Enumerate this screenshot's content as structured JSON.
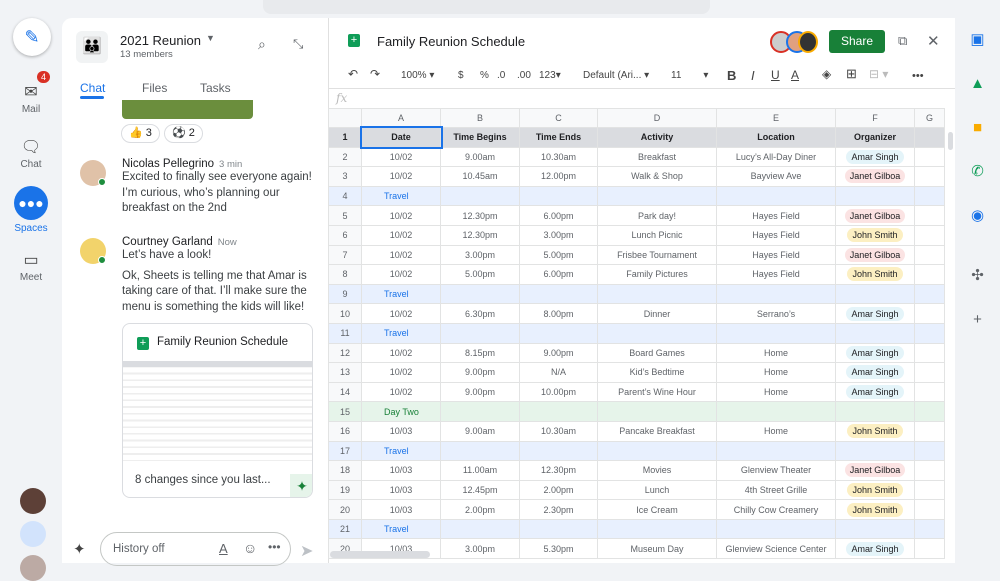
{
  "rail": {
    "mail": "Mail",
    "mail_badge": "4",
    "chat": "Chat",
    "spaces": "Spaces",
    "meet": "Meet"
  },
  "space": {
    "title": "2021 Reunion",
    "members": "13 members",
    "tabs": [
      "Chat",
      "Files",
      "Tasks"
    ]
  },
  "reactions": [
    {
      "emoji": "👍",
      "count": "3"
    },
    {
      "emoji": "⚽",
      "count": "2"
    }
  ],
  "messages": [
    {
      "name": "Nicolas Pellegrino",
      "time": "3 min",
      "text": "Excited to finally see everyone again! I’m curious, who’s planning our breakfast on the 2nd"
    },
    {
      "name": "Courtney Garland",
      "time": "Now",
      "text": "Let’s have a look!",
      "text2": "Ok, Sheets is telling me that Amar is taking care of that. I’ll make sure the menu is something the kids will like!"
    }
  ],
  "card": {
    "title": "Family Reunion Schedule",
    "summary": "8 changes since you last..."
  },
  "compose": {
    "placeholder": "History off"
  },
  "sheet": {
    "title": "Family Reunion Schedule",
    "share": "Share",
    "toolbar": {
      "zoom": "100%",
      "currency": "$",
      "percent": "%",
      "dec_less": ".0",
      "dec_more": ".00",
      "format": "123",
      "font": "Default (Ari...",
      "size": "11",
      "bold": "B",
      "italic": "I",
      "underline": "U",
      "color": "A"
    },
    "fx": "fx",
    "columns": [
      "A",
      "B",
      "C",
      "D",
      "E",
      "F",
      "G"
    ],
    "headers": [
      "Date",
      "Time Begins",
      "Time Ends",
      "Activity",
      "Location",
      "Organizer"
    ],
    "rows": [
      {
        "n": "2",
        "cells": [
          "10/02",
          "9.00am",
          "10.30am",
          "Breakfast",
          "Lucy’s All-Day Diner",
          "Amar Singh"
        ]
      },
      {
        "n": "3",
        "cells": [
          "10/02",
          "10.45am",
          "12.00pm",
          "Walk & Shop",
          "Bayview Ave",
          "Janet Gilboa"
        ]
      },
      {
        "n": "4",
        "label": "Travel",
        "kind": "travel"
      },
      {
        "n": "5",
        "cells": [
          "10/02",
          "12.30pm",
          "6.00pm",
          "Park day!",
          "Hayes Field",
          "Janet Gilboa"
        ]
      },
      {
        "n": "6",
        "cells": [
          "10/02",
          "12.30pm",
          "3.00pm",
          "Lunch Picnic",
          "Hayes Field",
          "John Smith"
        ]
      },
      {
        "n": "7",
        "cells": [
          "10/02",
          "3.00pm",
          "5.00pm",
          "Frisbee Tournament",
          "Hayes Field",
          "Janet Gilboa"
        ]
      },
      {
        "n": "8",
        "cells": [
          "10/02",
          "5.00pm",
          "6.00pm",
          "Family Pictures",
          "Hayes Field",
          "John Smith"
        ]
      },
      {
        "n": "9",
        "label": "Travel",
        "kind": "travel"
      },
      {
        "n": "10",
        "cells": [
          "10/02",
          "6.30pm",
          "8.00pm",
          "Dinner",
          "Serrano’s",
          "Amar Singh"
        ]
      },
      {
        "n": "11",
        "label": "Travel",
        "kind": "travel"
      },
      {
        "n": "12",
        "cells": [
          "10/02",
          "8.15pm",
          "9.00pm",
          "Board Games",
          "Home",
          "Amar Singh"
        ]
      },
      {
        "n": "13",
        "cells": [
          "10/02",
          "9.00pm",
          "N/A",
          "Kid’s Bedtime",
          "Home",
          "Amar Singh"
        ]
      },
      {
        "n": "14",
        "cells": [
          "10/02",
          "9.00pm",
          "10.00pm",
          "Parent’s Wine Hour",
          "Home",
          "Amar Singh"
        ]
      },
      {
        "n": "15",
        "label": "Day Two",
        "kind": "green"
      },
      {
        "n": "16",
        "cells": [
          "10/03",
          "9.00am",
          "10.30am",
          "Pancake Breakfast",
          "Home",
          "John Smith"
        ]
      },
      {
        "n": "17",
        "label": "Travel",
        "kind": "travel"
      },
      {
        "n": "18",
        "cells": [
          "10/03",
          "11.00am",
          "12.30pm",
          "Movies",
          "Glenview Theater",
          "Janet Gilboa"
        ]
      },
      {
        "n": "19",
        "cells": [
          "10/03",
          "12.45pm",
          "2.00pm",
          "Lunch",
          "4th Street Grille",
          "John Smith"
        ]
      },
      {
        "n": "20",
        "cells": [
          "10/03",
          "2.00pm",
          "2.30pm",
          "Ice Cream",
          "Chilly Cow Creamery",
          "John Smith"
        ]
      },
      {
        "n": "21",
        "label": "Travel",
        "kind": "travel"
      },
      {
        "n": "20",
        "cells": [
          "10/03",
          "3.00pm",
          "5.30pm",
          "Museum Day",
          "Glenview Science Center",
          "Amar Singh"
        ]
      }
    ]
  },
  "organizer_colors": {
    "Amar Singh": "#e4f4f9",
    "Janet Gilboa": "#fbe3e3",
    "John Smith": "#fcefc2"
  },
  "accent": "#1a73e8",
  "share_color": "#188038"
}
